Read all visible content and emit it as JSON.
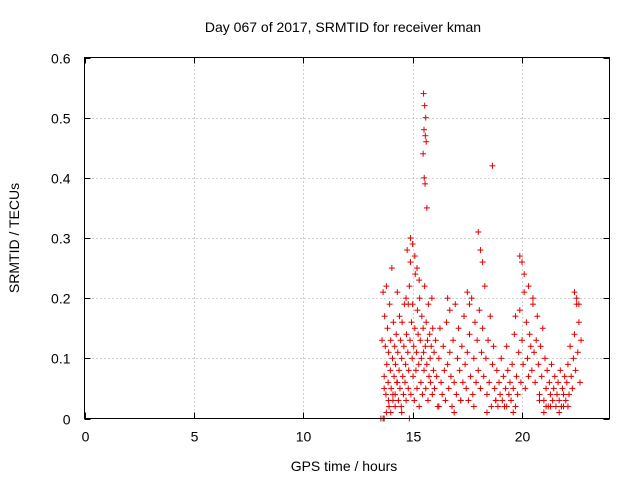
{
  "chart_data": {
    "type": "scatter",
    "title": "Day 067 of 2017, SRMTID for receiver kman",
    "xlabel": "GPS time / hours",
    "ylabel": "SRMTID / TECUs",
    "xlim": [
      0,
      24
    ],
    "ylim": [
      0,
      0.6
    ],
    "xticks": [
      0,
      5,
      10,
      15,
      20
    ],
    "yticks": [
      0,
      0.1,
      0.2,
      0.3,
      0.4,
      0.5,
      0.6
    ],
    "xtick_labels": [
      "0",
      "5",
      "10",
      "15",
      "20"
    ],
    "ytick_labels": [
      "0",
      "0.1",
      "0.2",
      "0.3",
      "0.4",
      "0.5",
      "0.6"
    ],
    "grid": true,
    "marker": "+",
    "color": "#e00000",
    "series": [
      {
        "x": [
          13.6,
          13.65,
          13.7,
          13.72,
          13.75,
          13.78,
          13.8,
          13.82,
          13.85,
          13.88,
          13.9,
          13.92,
          13.95,
          13.98,
          14.0,
          14.02,
          14.05,
          14.08,
          14.1,
          14.12,
          14.15,
          14.18,
          14.2,
          14.22,
          14.25,
          14.28,
          14.3,
          14.32,
          14.35,
          14.38,
          14.4,
          14.42,
          14.45,
          14.48,
          14.5,
          14.52,
          14.55,
          14.58,
          14.6,
          14.62,
          14.65,
          14.68,
          14.7,
          14.72,
          14.75,
          14.78,
          14.8,
          14.82,
          14.85,
          14.88,
          14.9,
          14.92,
          14.95,
          14.98,
          15.0,
          15.02,
          15.05,
          15.08,
          15.1,
          15.12,
          15.15,
          15.18,
          15.2,
          15.22,
          15.25,
          15.28,
          15.3,
          15.32,
          15.35,
          15.38,
          15.4,
          15.42,
          15.45,
          15.48,
          15.5,
          15.52,
          15.55,
          15.58,
          15.6,
          15.62,
          15.65,
          15.68,
          15.7,
          15.72,
          15.75,
          15.78,
          15.8,
          15.82,
          15.85,
          15.88,
          15.9,
          15.92,
          15.95,
          15.98,
          16.0,
          16.05,
          16.1,
          16.15,
          16.2,
          16.25,
          16.3,
          16.35,
          16.4,
          16.45,
          16.5,
          16.55,
          16.6,
          16.65,
          16.7,
          16.75,
          16.8,
          16.85,
          16.9,
          16.95,
          17.0,
          17.05,
          17.1,
          17.15,
          17.2,
          17.25,
          17.3,
          17.35,
          17.4,
          17.45,
          17.5,
          17.55,
          17.6,
          17.65,
          17.7,
          17.75,
          17.8,
          17.85,
          17.9,
          17.95,
          18.0,
          18.05,
          18.1,
          18.15,
          18.2,
          18.25,
          18.3,
          18.35,
          18.4,
          18.45,
          18.5,
          18.55,
          18.6,
          18.65,
          18.7,
          18.75,
          18.8,
          18.85,
          18.9,
          18.95,
          19.0,
          19.05,
          19.1,
          19.15,
          19.2,
          19.25,
          19.3,
          19.35,
          19.4,
          19.45,
          19.5,
          19.55,
          19.6,
          19.65,
          19.7,
          19.75,
          19.8,
          19.85,
          19.9,
          19.95,
          20.0,
          20.05,
          20.1,
          20.15,
          20.2,
          20.25,
          20.3,
          20.35,
          20.4,
          20.45,
          20.5,
          20.55,
          20.6,
          20.65,
          20.7,
          20.75,
          20.8,
          20.85,
          20.9,
          20.95,
          21.0,
          21.05,
          21.1,
          21.15,
          21.2,
          21.25,
          21.3,
          21.35,
          21.4,
          21.45,
          21.5,
          21.55,
          21.6,
          21.65,
          21.7,
          21.75,
          21.8,
          21.85,
          21.9,
          21.95,
          22.0,
          22.05,
          22.1,
          22.15,
          22.2,
          22.25,
          22.3,
          22.35,
          22.4,
          22.45,
          22.5,
          22.55,
          22.6,
          22.65,
          22.7,
          15.5,
          15.55,
          15.6,
          15.52,
          15.58,
          15.62,
          15.48,
          15.53,
          15.57,
          15.65,
          18.65,
          14.9,
          15.0,
          15.1,
          15.2,
          15.3,
          13.65,
          13.7,
          13.8,
          14.0,
          14.2,
          14.5,
          18.0,
          18.1,
          18.2,
          19.9,
          20.0,
          20.1,
          20.3,
          20.5,
          22.4,
          22.5,
          22.6,
          16.6,
          16.7,
          17.5,
          17.6,
          14.7,
          14.8,
          19.7,
          21.9,
          21.0,
          21.1,
          13.7,
          13.9,
          14.1,
          14.3,
          13.55,
          14.85,
          16.2,
          16.9,
          17.2,
          17.8,
          18.4,
          18.8,
          19.3,
          19.6,
          20.8,
          21.3,
          21.7,
          22.1
        ],
        "y": [
          0.13,
          0.21,
          0.07,
          0.17,
          0.12,
          0.04,
          0.22,
          0.09,
          0.15,
          0.06,
          0.11,
          0.02,
          0.19,
          0.08,
          0.13,
          0.05,
          0.25,
          0.1,
          0.03,
          0.16,
          0.07,
          0.12,
          0.04,
          0.09,
          0.14,
          0.06,
          0.21,
          0.11,
          0.03,
          0.08,
          0.17,
          0.05,
          0.13,
          0.02,
          0.1,
          0.16,
          0.07,
          0.04,
          0.12,
          0.19,
          0.06,
          0.09,
          0.03,
          0.14,
          0.28,
          0.11,
          0.05,
          0.08,
          0.22,
          0.13,
          0.26,
          0.04,
          0.16,
          0.1,
          0.19,
          0.07,
          0.12,
          0.03,
          0.15,
          0.24,
          0.08,
          0.11,
          0.05,
          0.18,
          0.14,
          0.09,
          0.02,
          0.2,
          0.13,
          0.06,
          0.1,
          0.17,
          0.04,
          0.15,
          0.11,
          0.08,
          0.22,
          0.12,
          0.05,
          0.16,
          0.09,
          0.13,
          0.03,
          0.19,
          0.07,
          0.14,
          0.1,
          0.06,
          0.12,
          0.2,
          0.04,
          0.15,
          0.08,
          0.11,
          0.05,
          0.13,
          0.07,
          0.02,
          0.1,
          0.15,
          0.06,
          0.04,
          0.12,
          0.08,
          0.03,
          0.16,
          0.09,
          0.05,
          0.11,
          0.07,
          0.02,
          0.13,
          0.06,
          0.19,
          0.04,
          0.1,
          0.15,
          0.08,
          0.03,
          0.12,
          0.06,
          0.17,
          0.09,
          0.05,
          0.11,
          0.03,
          0.14,
          0.07,
          0.2,
          0.04,
          0.1,
          0.16,
          0.06,
          0.13,
          0.08,
          0.18,
          0.05,
          0.11,
          0.15,
          0.07,
          0.22,
          0.1,
          0.04,
          0.13,
          0.06,
          0.17,
          0.02,
          0.09,
          0.12,
          0.05,
          0.03,
          0.08,
          0.02,
          0.06,
          0.04,
          0.1,
          0.03,
          0.07,
          0.02,
          0.05,
          0.12,
          0.08,
          0.04,
          0.06,
          0.03,
          0.09,
          0.05,
          0.14,
          0.02,
          0.07,
          0.04,
          0.11,
          0.18,
          0.06,
          0.13,
          0.09,
          0.21,
          0.05,
          0.16,
          0.1,
          0.07,
          0.14,
          0.12,
          0.08,
          0.19,
          0.11,
          0.06,
          0.13,
          0.17,
          0.09,
          0.04,
          0.12,
          0.07,
          0.15,
          0.03,
          0.1,
          0.05,
          0.08,
          0.02,
          0.06,
          0.04,
          0.09,
          0.03,
          0.05,
          0.07,
          0.02,
          0.04,
          0.06,
          0.03,
          0.08,
          0.02,
          0.05,
          0.04,
          0.07,
          0.03,
          0.06,
          0.09,
          0.04,
          0.12,
          0.07,
          0.05,
          0.1,
          0.14,
          0.08,
          0.19,
          0.11,
          0.16,
          0.06,
          0.13,
          0.54,
          0.52,
          0.5,
          0.48,
          0.47,
          0.46,
          0.44,
          0.4,
          0.39,
          0.35,
          0.42,
          0.3,
          0.29,
          0.27,
          0.25,
          0.23,
          0.0,
          0.0,
          0.01,
          0.01,
          0.02,
          0.01,
          0.31,
          0.28,
          0.26,
          0.27,
          0.26,
          0.24,
          0.22,
          0.2,
          0.21,
          0.2,
          0.19,
          0.2,
          0.18,
          0.21,
          0.19,
          0.2,
          0.19,
          0.17,
          0.02,
          0.01,
          0.02,
          0.05,
          0.03,
          0.04,
          0.06,
          0.0,
          0.0,
          0.02,
          0.01,
          0.03,
          0.02,
          0.01,
          0.03,
          0.02,
          0.01,
          0.03,
          0.02,
          0.01,
          0.02
        ]
      }
    ]
  },
  "frame_color": "#000000",
  "grid_color": "#a0a0a0"
}
